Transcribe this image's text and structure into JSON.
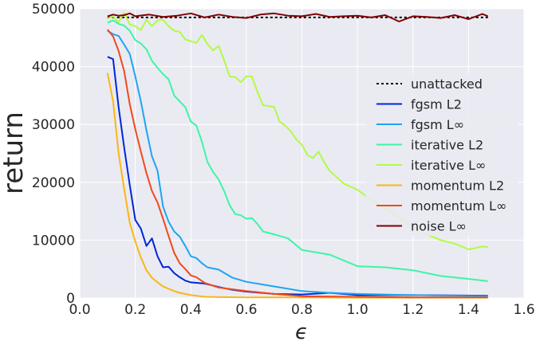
{
  "chart_data": {
    "type": "line",
    "xlabel": "ϵ",
    "ylabel": "return",
    "xlim": [
      0.0,
      1.6
    ],
    "ylim": [
      0,
      50000
    ],
    "xticks": [
      "0.0",
      "0.2",
      "0.4",
      "0.6",
      "0.8",
      "1.0",
      "1.2",
      "1.4",
      "1.6"
    ],
    "yticks": [
      "0",
      "10000",
      "20000",
      "30000",
      "40000",
      "50000"
    ],
    "grid": true,
    "legend_position": "right",
    "series": [
      {
        "name": "unattacked",
        "style": "dotted",
        "color": "#000000",
        "x": [
          0.1,
          1.47
        ],
        "y": [
          48500,
          48500
        ]
      },
      {
        "name": "fgsm L2",
        "color": "#0026d9",
        "x": [
          0.1,
          0.12,
          0.14,
          0.16,
          0.18,
          0.2,
          0.22,
          0.24,
          0.26,
          0.28,
          0.3,
          0.32,
          0.34,
          0.36,
          0.38,
          0.4,
          0.45,
          0.5,
          0.55,
          0.6,
          0.7,
          0.8,
          0.9,
          1.0,
          1.2,
          1.47
        ],
        "y": [
          41700,
          41300,
          33000,
          26000,
          19500,
          13500,
          12000,
          9000,
          10300,
          7200,
          5300,
          5400,
          4300,
          3600,
          3000,
          2700,
          2500,
          1900,
          1400,
          1100,
          700,
          600,
          900,
          500,
          500,
          400
        ]
      },
      {
        "name": "fgsm L∞",
        "color": "#1ea5f1",
        "x": [
          0.1,
          0.12,
          0.14,
          0.16,
          0.18,
          0.2,
          0.22,
          0.24,
          0.26,
          0.28,
          0.3,
          0.32,
          0.34,
          0.36,
          0.38,
          0.4,
          0.42,
          0.44,
          0.46,
          0.5,
          0.55,
          0.6,
          0.7,
          0.8,
          0.9,
          1.0,
          1.2,
          1.47
        ],
        "y": [
          46200,
          45600,
          45300,
          43800,
          42200,
          38300,
          34000,
          29000,
          24500,
          22000,
          15800,
          13200,
          11500,
          10600,
          9000,
          7200,
          6900,
          6000,
          5300,
          4900,
          3500,
          2800,
          2000,
          1200,
          900,
          700,
          500,
          300
        ]
      },
      {
        "name": "iterative L2",
        "color": "#3df5a6",
        "x": [
          0.1,
          0.12,
          0.14,
          0.16,
          0.18,
          0.2,
          0.22,
          0.24,
          0.26,
          0.28,
          0.3,
          0.32,
          0.34,
          0.36,
          0.38,
          0.4,
          0.42,
          0.44,
          0.46,
          0.48,
          0.5,
          0.52,
          0.54,
          0.56,
          0.58,
          0.6,
          0.62,
          0.64,
          0.66,
          0.7,
          0.75,
          0.8,
          0.9,
          1.0,
          1.1,
          1.2,
          1.3,
          1.4,
          1.47
        ],
        "y": [
          47600,
          48000,
          47400,
          47100,
          46200,
          44600,
          44000,
          43000,
          41000,
          39800,
          38700,
          37800,
          35000,
          34000,
          33000,
          30500,
          29800,
          27000,
          23500,
          21800,
          20500,
          18500,
          16000,
          14500,
          14300,
          13700,
          13800,
          12800,
          11500,
          11000,
          10300,
          8300,
          7500,
          5500,
          5300,
          4800,
          3800,
          3300,
          2900
        ]
      },
      {
        "name": "iterative L∞",
        "color": "#b2fb43",
        "x": [
          0.1,
          0.12,
          0.14,
          0.16,
          0.18,
          0.2,
          0.22,
          0.24,
          0.26,
          0.28,
          0.3,
          0.32,
          0.34,
          0.36,
          0.38,
          0.4,
          0.42,
          0.44,
          0.46,
          0.48,
          0.5,
          0.52,
          0.54,
          0.56,
          0.58,
          0.6,
          0.62,
          0.64,
          0.66,
          0.68,
          0.7,
          0.72,
          0.74,
          0.76,
          0.78,
          0.8,
          0.82,
          0.84,
          0.86,
          0.88,
          0.9,
          0.95,
          1.0,
          1.05,
          1.1,
          1.15,
          1.2,
          1.25,
          1.3,
          1.35,
          1.4,
          1.45,
          1.47
        ],
        "y": [
          48300,
          48700,
          47700,
          49300,
          47300,
          47000,
          46300,
          48100,
          47000,
          48000,
          48100,
          47000,
          46200,
          46000,
          44700,
          44400,
          44100,
          45500,
          43900,
          42800,
          43600,
          41100,
          38300,
          38200,
          37300,
          38300,
          38300,
          35600,
          33300,
          33200,
          33000,
          30500,
          29800,
          28800,
          27400,
          26500,
          24700,
          24200,
          25300,
          23500,
          22000,
          19800,
          18700,
          17000,
          15500,
          14000,
          12200,
          11000,
          10000,
          9400,
          8400,
          8900,
          8800
        ]
      },
      {
        "name": "momentum L2",
        "color": "#fbb614",
        "x": [
          0.1,
          0.12,
          0.14,
          0.16,
          0.18,
          0.2,
          0.22,
          0.24,
          0.26,
          0.28,
          0.3,
          0.32,
          0.34,
          0.36,
          0.4,
          0.45,
          0.5,
          0.6,
          0.8,
          1.0,
          1.2,
          1.47
        ],
        "y": [
          38900,
          34000,
          25000,
          18800,
          13000,
          9800,
          7000,
          4800,
          3500,
          2700,
          2000,
          1600,
          1200,
          900,
          500,
          200,
          150,
          100,
          100,
          50,
          50,
          50
        ]
      },
      {
        "name": "momentum L∞",
        "color": "#f04a1a",
        "x": [
          0.1,
          0.12,
          0.14,
          0.16,
          0.18,
          0.2,
          0.22,
          0.24,
          0.26,
          0.28,
          0.3,
          0.32,
          0.34,
          0.36,
          0.38,
          0.4,
          0.42,
          0.45,
          0.5,
          0.55,
          0.6,
          0.7,
          0.8,
          1.0,
          1.2,
          1.47
        ],
        "y": [
          46400,
          45200,
          42700,
          39200,
          33500,
          29200,
          25300,
          21600,
          18500,
          16500,
          13700,
          10700,
          7800,
          6000,
          5000,
          3900,
          3600,
          2600,
          1800,
          1500,
          1200,
          700,
          300,
          200,
          100,
          100
        ]
      },
      {
        "name": "noise L∞",
        "color": "#800000",
        "x": [
          0.1,
          0.12,
          0.14,
          0.16,
          0.18,
          0.2,
          0.25,
          0.3,
          0.35,
          0.4,
          0.45,
          0.5,
          0.55,
          0.6,
          0.65,
          0.7,
          0.75,
          0.8,
          0.85,
          0.9,
          0.95,
          1.0,
          1.05,
          1.1,
          1.15,
          1.2,
          1.25,
          1.3,
          1.35,
          1.4,
          1.45,
          1.47
        ],
        "y": [
          48700,
          49000,
          48800,
          48900,
          49200,
          48700,
          49000,
          48600,
          48800,
          49200,
          48500,
          49000,
          48600,
          48400,
          49000,
          49200,
          48800,
          48700,
          49100,
          48600,
          48700,
          48800,
          48500,
          48900,
          47800,
          48700,
          48600,
          48400,
          48900,
          48200,
          49100,
          48700
        ]
      }
    ]
  }
}
